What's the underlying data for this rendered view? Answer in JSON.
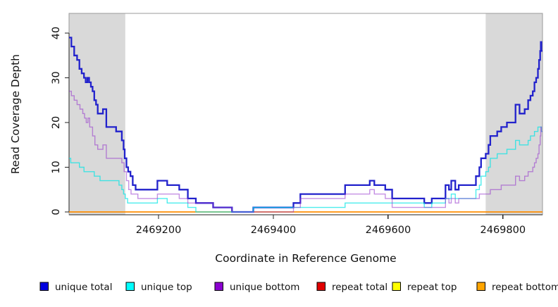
{
  "figure": {
    "x_label": "Coordinate in Reference Genome",
    "y_label": "Read Coverage Depth"
  },
  "axes": {
    "xlim": [
      2469044,
      2469869
    ],
    "ylim": [
      0,
      45
    ],
    "x_ticks": [
      {
        "value": 2469200,
        "label": "2469200"
      },
      {
        "value": 2469400,
        "label": "2469400"
      },
      {
        "value": 2469600,
        "label": "2469600"
      },
      {
        "value": 2469800,
        "label": "2469800"
      }
    ],
    "y_ticks": [
      {
        "value": 0,
        "label": "0"
      },
      {
        "value": 10,
        "label": "10"
      },
      {
        "value": 20,
        "label": "20"
      },
      {
        "value": 30,
        "label": "30"
      },
      {
        "value": 40,
        "label": "40"
      }
    ]
  },
  "colors": {
    "masked_region": "#D9D9D9",
    "box": "#999999",
    "axis": "#222222",
    "unique_total": "#2222CC",
    "unique_top": "#00E6E6",
    "unique_bottom": "#9333CC",
    "repeat_total": "#DD0000",
    "repeat_top": "#FFEE00",
    "repeat_bottom": "#FF8C00"
  },
  "legend": [
    {
      "label": "unique total",
      "color": "#0000E0"
    },
    {
      "label": "unique top",
      "color": "#00FFFF"
    },
    {
      "label": "unique bottom",
      "color": "#8B00D0"
    },
    {
      "label": "repeat total",
      "color": "#E00000"
    },
    {
      "label": "repeat top",
      "color": "#FFFF00"
    },
    {
      "label": "repeat bottom",
      "color": "#FFA500"
    }
  ],
  "chart_data": {
    "type": "line",
    "subtype": "step-after",
    "title": "",
    "xlabel": "Coordinate in Reference Genome",
    "ylabel": "Read Coverage Depth",
    "xlim": [
      2469044,
      2469869
    ],
    "ylim": [
      0,
      45
    ],
    "grid": false,
    "legend_position": "bottom",
    "masked_regions": [
      [
        2469044,
        2469142
      ],
      [
        2469770,
        2469869
      ]
    ],
    "series": [
      {
        "name": "repeat total",
        "color_key": "repeat_total",
        "width": 1.3,
        "opacity": 1,
        "points": [
          [
            2469044,
            0
          ],
          [
            2469869,
            0
          ]
        ]
      },
      {
        "name": "repeat top",
        "color_key": "repeat_top",
        "width": 1.3,
        "opacity": 1,
        "points": [
          [
            2469044,
            0
          ],
          [
            2469869,
            0
          ]
        ]
      },
      {
        "name": "repeat bottom",
        "color_key": "repeat_bottom",
        "width": 1.6,
        "opacity": 1,
        "points": [
          [
            2469044,
            0
          ],
          [
            2469869,
            0
          ]
        ]
      },
      {
        "name": "unique total",
        "color_key": "unique_total",
        "width": 2.3,
        "opacity": 1,
        "points": [
          [
            2469044,
            39
          ],
          [
            2469048,
            37
          ],
          [
            2469053,
            35
          ],
          [
            2469058,
            34
          ],
          [
            2469062,
            32
          ],
          [
            2469066,
            31
          ],
          [
            2469070,
            30
          ],
          [
            2469073,
            29
          ],
          [
            2469076,
            30
          ],
          [
            2469079,
            29
          ],
          [
            2469082,
            28
          ],
          [
            2469085,
            27
          ],
          [
            2469088,
            25
          ],
          [
            2469091,
            24
          ],
          [
            2469094,
            22
          ],
          [
            2469103,
            23
          ],
          [
            2469109,
            19
          ],
          [
            2469126,
            18
          ],
          [
            2469136,
            16
          ],
          [
            2469139,
            14
          ],
          [
            2469141,
            12
          ],
          [
            2469144,
            10
          ],
          [
            2469147,
            9
          ],
          [
            2469151,
            8
          ],
          [
            2469155,
            6
          ],
          [
            2469160,
            5
          ],
          [
            2469198,
            7
          ],
          [
            2469215,
            6
          ],
          [
            2469236,
            5
          ],
          [
            2469251,
            3
          ],
          [
            2469265,
            2
          ],
          [
            2469295,
            1
          ],
          [
            2469328,
            0
          ],
          [
            2469365,
            1
          ],
          [
            2469435,
            2
          ],
          [
            2469447,
            4
          ],
          [
            2469525,
            6
          ],
          [
            2469568,
            7
          ],
          [
            2469576,
            6
          ],
          [
            2469595,
            5
          ],
          [
            2469607,
            3
          ],
          [
            2469663,
            2
          ],
          [
            2469676,
            3
          ],
          [
            2469700,
            6
          ],
          [
            2469706,
            5
          ],
          [
            2469710,
            7
          ],
          [
            2469717,
            5
          ],
          [
            2469723,
            6
          ],
          [
            2469753,
            8
          ],
          [
            2469759,
            10
          ],
          [
            2469762,
            12
          ],
          [
            2469770,
            13
          ],
          [
            2469775,
            15
          ],
          [
            2469778,
            17
          ],
          [
            2469790,
            18
          ],
          [
            2469797,
            19
          ],
          [
            2469807,
            20
          ],
          [
            2469822,
            24
          ],
          [
            2469829,
            22
          ],
          [
            2469838,
            23
          ],
          [
            2469844,
            25
          ],
          [
            2469848,
            26
          ],
          [
            2469852,
            27
          ],
          [
            2469855,
            29
          ],
          [
            2469858,
            30
          ],
          [
            2469861,
            32
          ],
          [
            2469863,
            34
          ],
          [
            2469865,
            36
          ],
          [
            2469866,
            38
          ],
          [
            2469867,
            36
          ],
          [
            2469869,
            36
          ]
        ]
      },
      {
        "name": "unique top",
        "color_key": "unique_top",
        "width": 1.4,
        "opacity": 0.7,
        "points": [
          [
            2469044,
            12
          ],
          [
            2469047,
            11
          ],
          [
            2469062,
            10
          ],
          [
            2469070,
            9
          ],
          [
            2469088,
            8
          ],
          [
            2469098,
            7
          ],
          [
            2469131,
            6
          ],
          [
            2469136,
            5
          ],
          [
            2469139,
            4
          ],
          [
            2469142,
            3
          ],
          [
            2469146,
            2
          ],
          [
            2469198,
            3
          ],
          [
            2469215,
            2
          ],
          [
            2469251,
            1
          ],
          [
            2469265,
            0
          ],
          [
            2469365,
            1
          ],
          [
            2469525,
            2
          ],
          [
            2469663,
            1
          ],
          [
            2469676,
            2
          ],
          [
            2469700,
            3
          ],
          [
            2469710,
            4
          ],
          [
            2469717,
            3
          ],
          [
            2469753,
            5
          ],
          [
            2469759,
            6
          ],
          [
            2469762,
            8
          ],
          [
            2469770,
            9
          ],
          [
            2469775,
            10
          ],
          [
            2469778,
            12
          ],
          [
            2469790,
            13
          ],
          [
            2469807,
            14
          ],
          [
            2469822,
            16
          ],
          [
            2469829,
            15
          ],
          [
            2469844,
            16
          ],
          [
            2469848,
            17
          ],
          [
            2469855,
            18
          ],
          [
            2469861,
            19
          ],
          [
            2469867,
            18
          ],
          [
            2469869,
            18
          ]
        ]
      },
      {
        "name": "unique bottom",
        "color_key": "unique_bottom",
        "width": 1.4,
        "opacity": 0.55,
        "points": [
          [
            2469044,
            27
          ],
          [
            2469048,
            26
          ],
          [
            2469053,
            25
          ],
          [
            2469058,
            24
          ],
          [
            2469063,
            23
          ],
          [
            2469068,
            22
          ],
          [
            2469071,
            21
          ],
          [
            2469074,
            20
          ],
          [
            2469077,
            21
          ],
          [
            2469080,
            19
          ],
          [
            2469085,
            17
          ],
          [
            2469089,
            15
          ],
          [
            2469094,
            14
          ],
          [
            2469103,
            15
          ],
          [
            2469109,
            12
          ],
          [
            2469136,
            11
          ],
          [
            2469140,
            9
          ],
          [
            2469144,
            7
          ],
          [
            2469148,
            5
          ],
          [
            2469152,
            4
          ],
          [
            2469164,
            3
          ],
          [
            2469198,
            4
          ],
          [
            2469236,
            3
          ],
          [
            2469251,
            2
          ],
          [
            2469295,
            1
          ],
          [
            2469328,
            0
          ],
          [
            2469435,
            1
          ],
          [
            2469447,
            3
          ],
          [
            2469525,
            4
          ],
          [
            2469568,
            5
          ],
          [
            2469576,
            4
          ],
          [
            2469595,
            3
          ],
          [
            2469607,
            1
          ],
          [
            2469700,
            3
          ],
          [
            2469706,
            2
          ],
          [
            2469710,
            3
          ],
          [
            2469717,
            2
          ],
          [
            2469723,
            3
          ],
          [
            2469759,
            4
          ],
          [
            2469778,
            5
          ],
          [
            2469797,
            6
          ],
          [
            2469822,
            8
          ],
          [
            2469829,
            7
          ],
          [
            2469838,
            8
          ],
          [
            2469844,
            9
          ],
          [
            2469852,
            10
          ],
          [
            2469855,
            11
          ],
          [
            2469858,
            12
          ],
          [
            2469861,
            13
          ],
          [
            2469863,
            15
          ],
          [
            2469865,
            17
          ],
          [
            2469866,
            19
          ],
          [
            2469867,
            18
          ],
          [
            2469869,
            18
          ]
        ]
      }
    ]
  }
}
